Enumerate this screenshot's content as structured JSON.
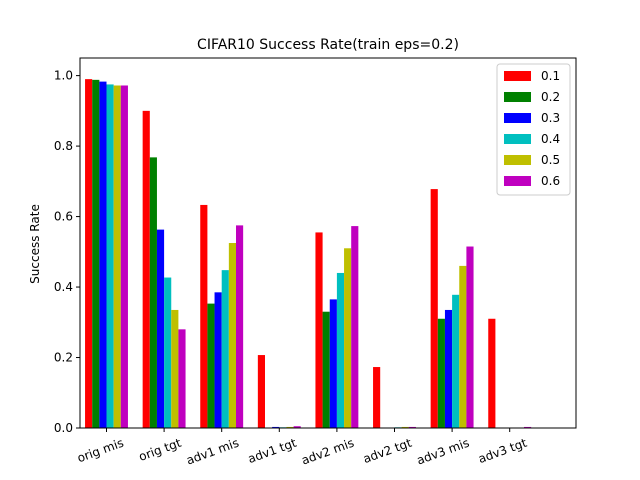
{
  "chart_data": {
    "type": "bar",
    "title": "CIFAR10 Success Rate(train eps=0.2)",
    "xlabel": "",
    "ylabel": "Success Rate",
    "ylim": [
      0,
      1.05
    ],
    "yticks": [
      "0.0",
      "0.2",
      "0.4",
      "0.6",
      "0.8",
      "1.0"
    ],
    "categories": [
      "orig mis",
      "orig tgt",
      "adv1 mis",
      "adv1 tgt",
      "adv2 mis",
      "adv2 tgt",
      "adv3 mis",
      "adv3 tgt"
    ],
    "legend_position": "top-right",
    "grid": false,
    "series": [
      {
        "name": "0.1",
        "color": "#ff0000",
        "values": [
          0.99,
          0.9,
          0.633,
          0.207,
          0.555,
          0.173,
          0.678,
          0.31
        ]
      },
      {
        "name": "0.2",
        "color": "#008000",
        "values": [
          0.988,
          0.768,
          0.353,
          0.0,
          0.33,
          0.0,
          0.31,
          0.0
        ]
      },
      {
        "name": "0.3",
        "color": "#0000ff",
        "values": [
          0.983,
          0.563,
          0.385,
          0.003,
          0.365,
          0.0,
          0.335,
          0.0
        ]
      },
      {
        "name": "0.4",
        "color": "#00bfbf",
        "values": [
          0.975,
          0.427,
          0.448,
          0.002,
          0.44,
          0.002,
          0.378,
          0.0
        ]
      },
      {
        "name": "0.5",
        "color": "#bfbf00",
        "values": [
          0.972,
          0.335,
          0.525,
          0.003,
          0.51,
          0.003,
          0.46,
          0.0
        ]
      },
      {
        "name": "0.6",
        "color": "#bf00bf",
        "values": [
          0.972,
          0.28,
          0.575,
          0.005,
          0.573,
          0.003,
          0.515,
          0.003
        ]
      }
    ]
  }
}
